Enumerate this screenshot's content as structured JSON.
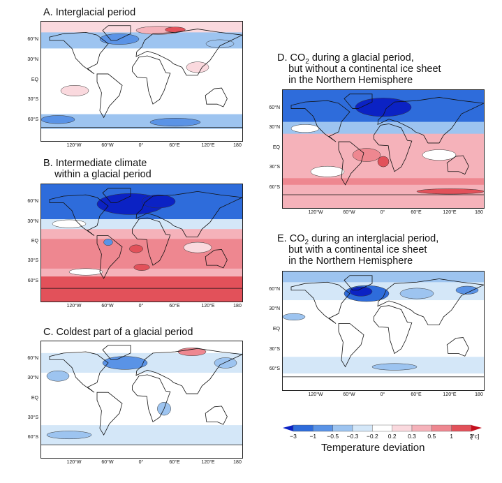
{
  "panels": [
    {
      "id": "A",
      "title_lines": [
        "A. Interglacial period"
      ]
    },
    {
      "id": "B",
      "title_lines": [
        "B. Intermediate climate",
        "    within a glacial period"
      ]
    },
    {
      "id": "C",
      "title_lines": [
        "C. Coldest part of a glacial period"
      ]
    },
    {
      "id": "D",
      "title_lines": [
        "D. CO|2| during a glacial period,",
        "    but without a continental ice sheet",
        "    in the Northern Hemisphere"
      ]
    },
    {
      "id": "E",
      "title_lines": [
        "E. CO|2| during an interglacial period,",
        "    but with a continental ice sheet",
        "    in the Northern Hemisphere"
      ]
    }
  ],
  "lat_labels": [
    "60°N",
    "30°N",
    "EQ",
    "30°S",
    "60°S"
  ],
  "lon_labels": [
    "120°W",
    "60°W",
    "0°",
    "60°E",
    "120°E",
    "180"
  ],
  "colorbar": {
    "title": "Temperature deviation",
    "unit": "[°c]",
    "tick_labels": [
      "−3",
      "−1",
      "−0.5",
      "−0.3",
      "−0.2",
      "0.2",
      "0.3",
      "0.5",
      "1",
      "3"
    ],
    "colors": [
      "#0b22c4",
      "#2e6cdb",
      "#5a93e6",
      "#9dc4f0",
      "#d4e7f8",
      "#ffffff",
      "#fad9de",
      "#f5b2ba",
      "#ee8790",
      "#e2515a",
      "#c4101e"
    ]
  }
}
